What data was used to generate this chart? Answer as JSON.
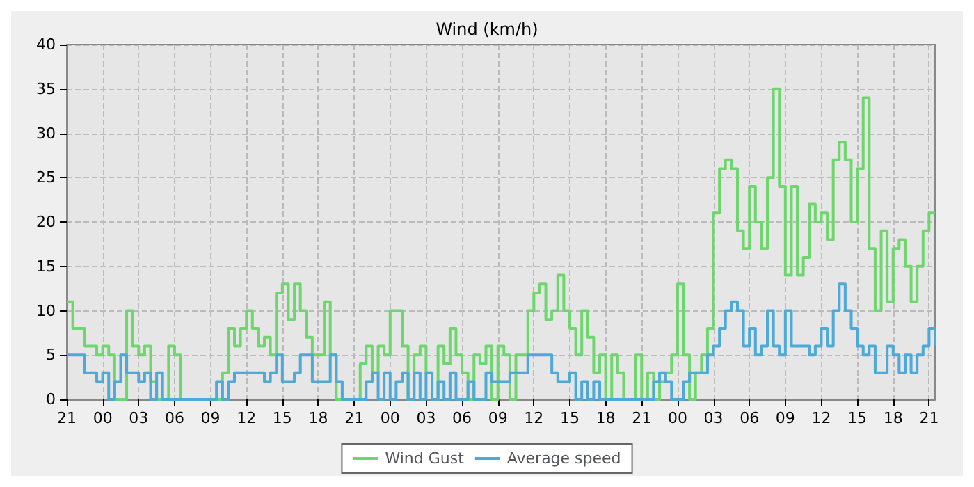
{
  "chart_data": {
    "type": "step",
    "title": "Wind (km/h)",
    "ylim": [
      0,
      40
    ],
    "categories": [
      "21",
      null,
      null,
      null,
      null,
      null,
      "00",
      null,
      null,
      null,
      null,
      null,
      "03",
      null,
      null,
      null,
      null,
      null,
      "06",
      null,
      null,
      null,
      null,
      null,
      "09",
      null,
      null,
      null,
      null,
      null,
      "12",
      null,
      null,
      null,
      null,
      null,
      "15",
      null,
      null,
      null,
      null,
      null,
      "18",
      null,
      null,
      null,
      null,
      null,
      "21",
      null,
      null,
      null,
      null,
      null,
      "00",
      null,
      null,
      null,
      null,
      null,
      "03",
      null,
      null,
      null,
      null,
      null,
      "06",
      null,
      null,
      null,
      null,
      null,
      "09",
      null,
      null,
      null,
      null,
      null,
      "12",
      null,
      null,
      null,
      null,
      null,
      "15",
      null,
      null,
      null,
      null,
      null,
      "18",
      null,
      null,
      null,
      null,
      null,
      "21",
      null,
      null,
      null,
      null,
      null,
      "00",
      null,
      null,
      null,
      null,
      null,
      "03",
      null,
      null,
      null,
      null,
      null,
      "06",
      null,
      null,
      null,
      null,
      null,
      "09",
      null,
      null,
      null,
      null,
      null,
      "12",
      null,
      null,
      null,
      null,
      null,
      "15",
      null,
      null,
      null,
      null,
      null,
      "18",
      null,
      null,
      null,
      null,
      null,
      "21",
      null
    ],
    "yticks": [
      0,
      5,
      10,
      15,
      20,
      25,
      30,
      35,
      40
    ],
    "grid": true,
    "legend": "bottom",
    "marker": "none",
    "series": [
      {
        "name": "Wind Gust",
        "color": "#6fd66f",
        "values": [
          11,
          8,
          8,
          6,
          6,
          5,
          6,
          5,
          0,
          0,
          10,
          6,
          5,
          6,
          2,
          0,
          0,
          6,
          5,
          0,
          0,
          0,
          0,
          0,
          0,
          0,
          3,
          8,
          6,
          8,
          10,
          8,
          6,
          7,
          5,
          12,
          13,
          9,
          13,
          10,
          7,
          5,
          5,
          11,
          5,
          0,
          0,
          0,
          0,
          4,
          6,
          3,
          6,
          5,
          10,
          10,
          6,
          0,
          5,
          6,
          3,
          0,
          6,
          4,
          8,
          5,
          3,
          0,
          5,
          4,
          6,
          0,
          6,
          5,
          0,
          5,
          5,
          10,
          12,
          13,
          9,
          10,
          14,
          10,
          8,
          5,
          10,
          7,
          3,
          5,
          0,
          5,
          3,
          0,
          0,
          5,
          0,
          3,
          0,
          2,
          3,
          5,
          13,
          5,
          0,
          3,
          5,
          8,
          21,
          26,
          27,
          26,
          19,
          17,
          24,
          20,
          17,
          25,
          35,
          24,
          14,
          24,
          14,
          16,
          22,
          20,
          21,
          18,
          27,
          29,
          27,
          20,
          26,
          34,
          17,
          10,
          19,
          11,
          17,
          18,
          15,
          11,
          15,
          19,
          21,
          21
        ]
      },
      {
        "name": "Average speed",
        "color": "#4ea8d8",
        "values": [
          5,
          5,
          5,
          3,
          3,
          2,
          3,
          0,
          2,
          5,
          3,
          3,
          2,
          3,
          0,
          3,
          0,
          0,
          0,
          0,
          0,
          0,
          0,
          0,
          0,
          2,
          0,
          2,
          3,
          3,
          3,
          3,
          3,
          2,
          3,
          5,
          2,
          2,
          3,
          5,
          5,
          2,
          2,
          2,
          5,
          2,
          0,
          0,
          0,
          0,
          2,
          3,
          0,
          3,
          0,
          2,
          3,
          0,
          3,
          0,
          3,
          0,
          2,
          0,
          3,
          0,
          0,
          2,
          0,
          0,
          3,
          2,
          2,
          2,
          3,
          3,
          3,
          5,
          5,
          5,
          5,
          3,
          2,
          2,
          3,
          0,
          2,
          0,
          2,
          0,
          0,
          0,
          0,
          0,
          0,
          0,
          0,
          0,
          2,
          3,
          2,
          0,
          0,
          2,
          3,
          3,
          3,
          5,
          6,
          8,
          10,
          11,
          10,
          6,
          8,
          5,
          6,
          10,
          6,
          5,
          10,
          6,
          6,
          6,
          5,
          6,
          8,
          6,
          10,
          13,
          10,
          8,
          6,
          5,
          6,
          3,
          3,
          6,
          5,
          3,
          5,
          3,
          5,
          6,
          8,
          6
        ]
      }
    ]
  }
}
